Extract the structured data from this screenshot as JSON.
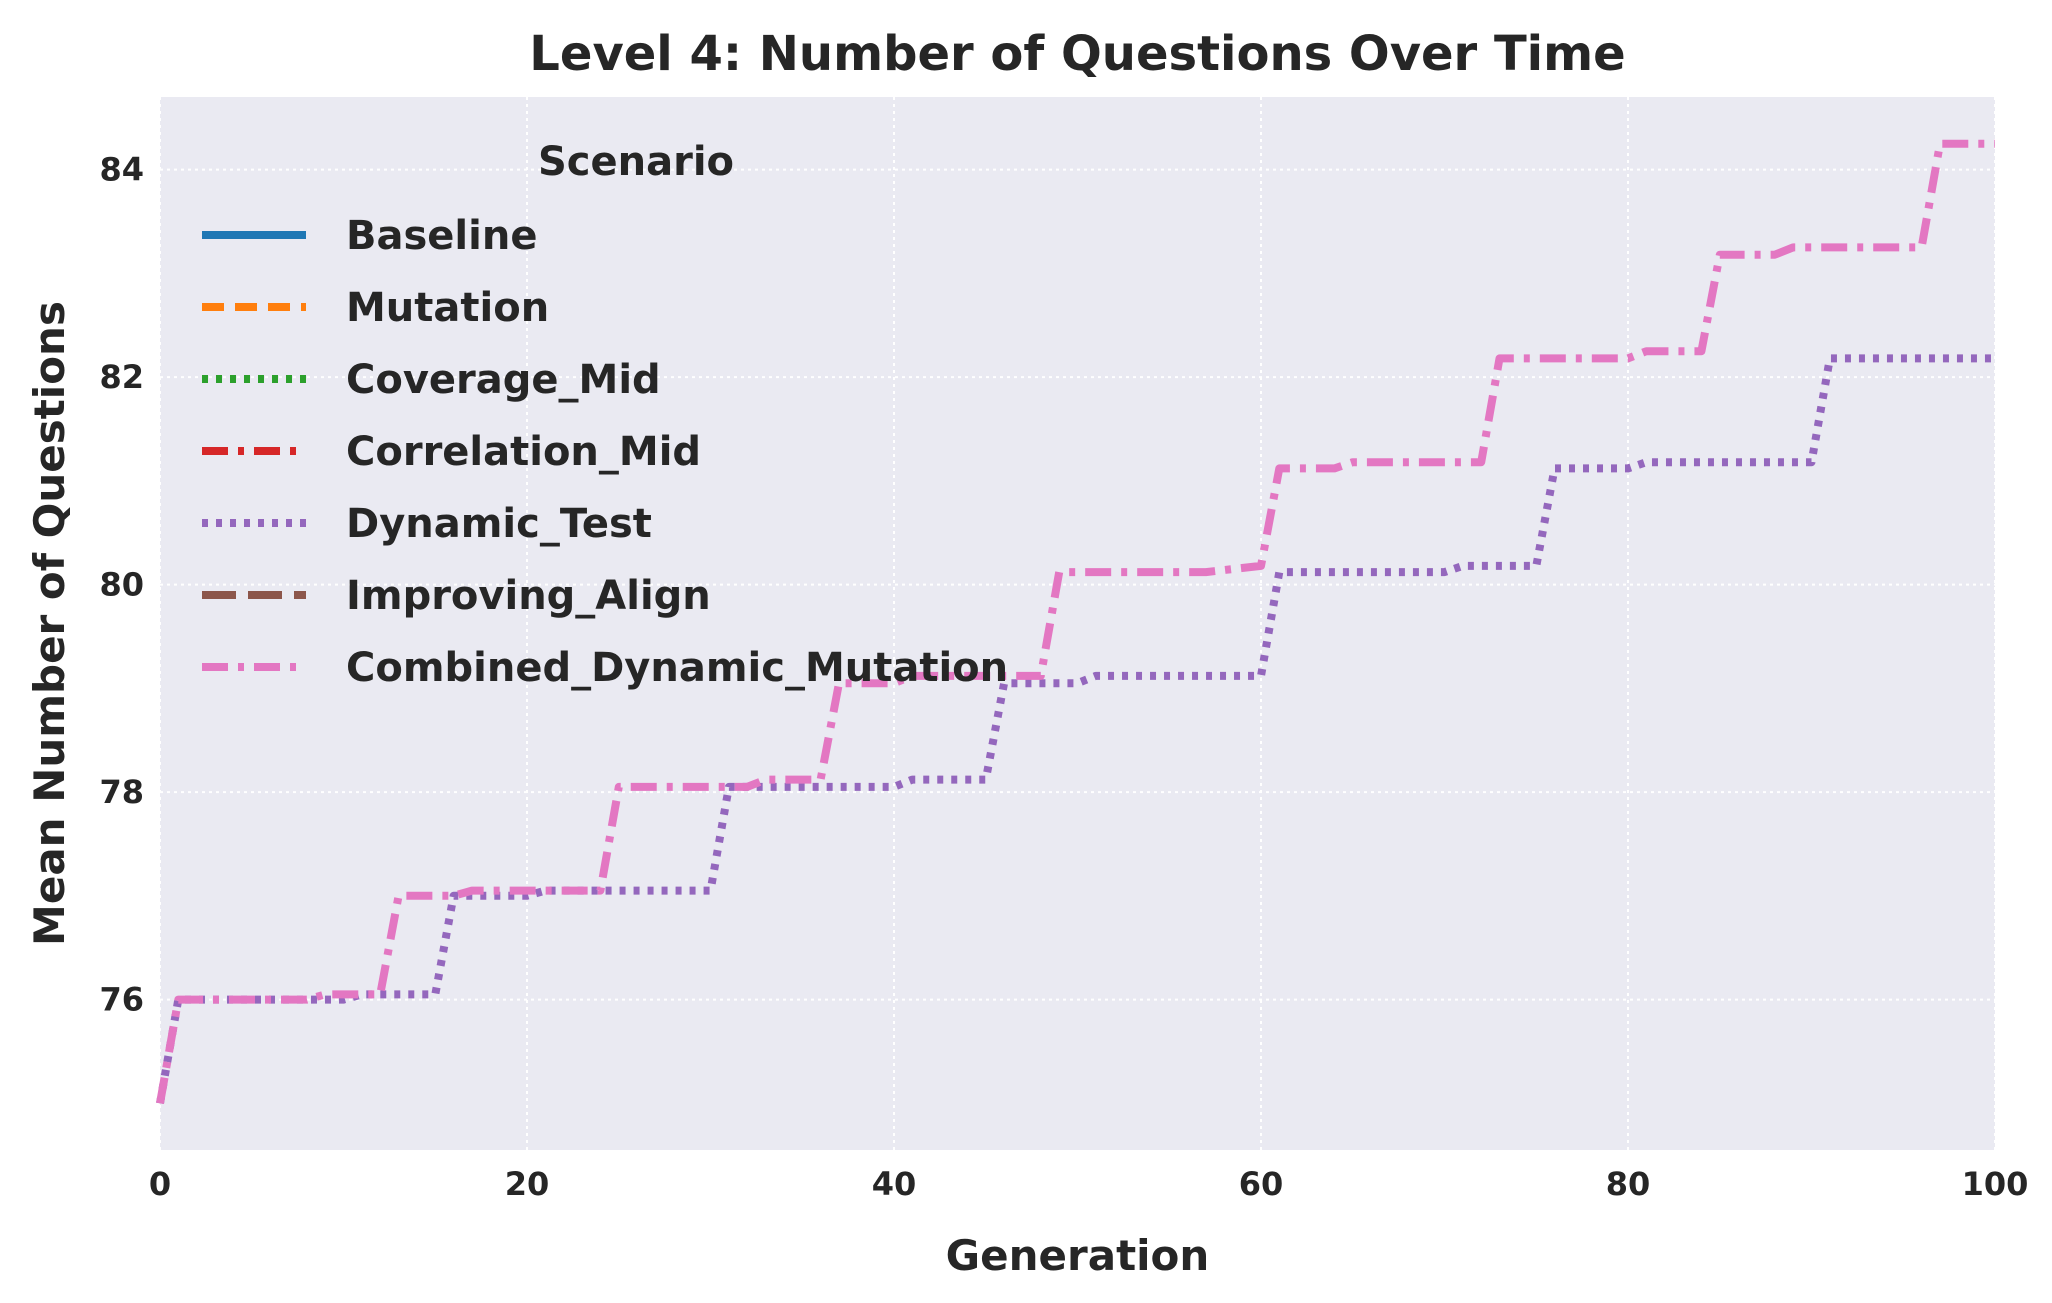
{
  "chart_data": {
    "type": "line",
    "title": "Level 4: Number of Questions Over Time",
    "xlabel": "Generation",
    "ylabel": "Mean Number of Questions",
    "xlim": [
      0,
      100
    ],
    "ylim": [
      74.55,
      84.7
    ],
    "xticks": [
      0,
      20,
      40,
      60,
      80,
      100
    ],
    "yticks": [
      76,
      78,
      80,
      82,
      84
    ],
    "grid": true,
    "legend": {
      "title": "Scenario",
      "placement": "upper-left"
    },
    "series": [
      {
        "name": "Baseline",
        "color": "#1f77b4",
        "dash": "solid",
        "visible": false,
        "x": [
          0,
          100
        ],
        "y": [
          75,
          84.2
        ]
      },
      {
        "name": "Mutation",
        "color": "#ff7f0e",
        "dash": "dashed",
        "visible": false,
        "x": [
          0,
          100
        ],
        "y": [
          75,
          84.2
        ]
      },
      {
        "name": "Coverage_Mid",
        "color": "#2ca02c",
        "dash": "dotted",
        "visible": false,
        "x": [
          0,
          100
        ],
        "y": [
          75,
          82.2
        ]
      },
      {
        "name": "Correlation_Mid",
        "color": "#d62728",
        "dash": "dashdot",
        "visible": false,
        "x": [
          0,
          100
        ],
        "y": [
          75,
          84.2
        ]
      },
      {
        "name": "Dynamic_Test",
        "color": "#9467bd",
        "dash": "dotted",
        "visible": true,
        "x": [
          0,
          1,
          10,
          11,
          15,
          16,
          20,
          21,
          30,
          31,
          40,
          41,
          45,
          46,
          50,
          51,
          60,
          61,
          70,
          71,
          75,
          76,
          80,
          81,
          90,
          91,
          100
        ],
        "y": [
          75.0,
          76.0,
          76.0,
          76.05,
          76.05,
          77.0,
          77.0,
          77.05,
          77.05,
          78.05,
          78.05,
          78.12,
          78.12,
          79.05,
          79.05,
          79.12,
          79.12,
          80.12,
          80.12,
          80.18,
          80.18,
          81.12,
          81.12,
          81.18,
          81.18,
          82.18,
          82.18
        ]
      },
      {
        "name": "Improving_Align",
        "color": "#8c564b",
        "dash": "longdash",
        "visible": false,
        "x": [
          0,
          100
        ],
        "y": [
          75,
          84.2
        ]
      },
      {
        "name": "Combined_Dynamic_Mutation",
        "color": "#e377c2",
        "dash": "dashdot",
        "visible": true,
        "x": [
          0,
          1,
          8,
          9,
          12,
          13,
          16,
          17,
          20,
          21,
          24,
          25,
          32,
          33,
          36,
          37,
          40,
          41,
          48,
          49,
          56,
          57,
          60,
          61,
          64,
          65,
          72,
          73,
          80,
          81,
          84,
          85,
          88,
          89,
          96,
          97,
          100
        ],
        "y": [
          75.0,
          76.0,
          76.0,
          76.05,
          76.05,
          77.0,
          77.0,
          77.05,
          77.05,
          77.05,
          77.05,
          78.05,
          78.05,
          78.12,
          78.12,
          79.05,
          79.05,
          79.12,
          79.12,
          80.12,
          80.12,
          80.12,
          80.18,
          81.12,
          81.12,
          81.18,
          81.18,
          82.18,
          82.18,
          82.25,
          82.25,
          83.18,
          83.18,
          83.25,
          83.25,
          84.25,
          84.25
        ]
      }
    ]
  }
}
